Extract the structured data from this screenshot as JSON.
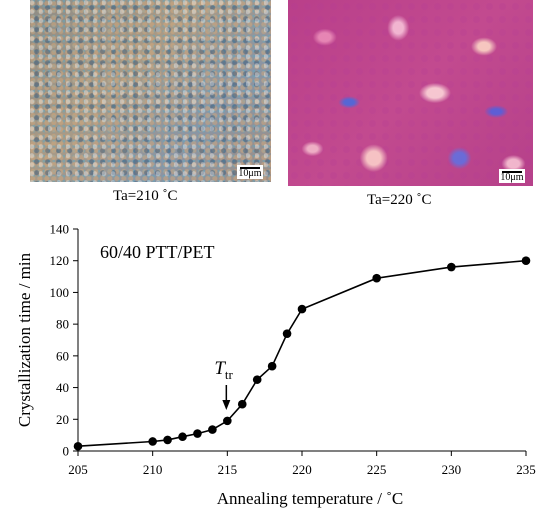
{
  "micrographs": [
    {
      "caption": "Ta=210 ˚C",
      "scale_label": "10μm"
    },
    {
      "caption": "Ta=220 ˚C",
      "scale_label": "10μm"
    }
  ],
  "chart_data": {
    "type": "line",
    "annotation": "60/40 PTT/PET",
    "xlabel": "Annealing temperature / ˚C",
    "ylabel": "Crystallization time / min",
    "xlim": [
      205,
      235
    ],
    "ylim": [
      0,
      140
    ],
    "xticks": [
      205,
      210,
      215,
      220,
      225,
      230,
      235
    ],
    "yticks": [
      0,
      20,
      40,
      60,
      80,
      100,
      120,
      140
    ],
    "grid": false,
    "series": [
      {
        "x": [
          205,
          210,
          211,
          212,
          213,
          214,
          215,
          216,
          217,
          218,
          219,
          220,
          225,
          230,
          235
        ],
        "y": [
          3,
          6,
          7,
          9,
          11,
          13.5,
          19,
          29.5,
          45,
          53.5,
          74,
          89.5,
          109,
          116,
          120
        ]
      }
    ],
    "marker_label": {
      "main": "T",
      "sub": "tr",
      "x": 215
    }
  }
}
